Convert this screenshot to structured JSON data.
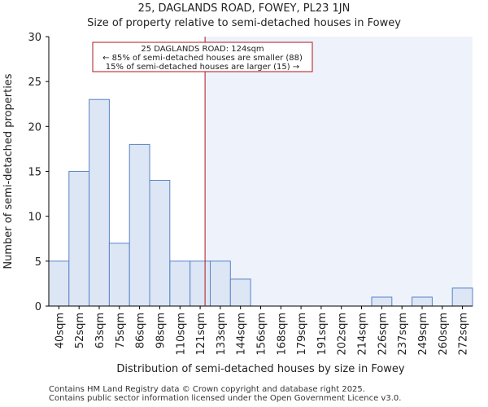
{
  "chart_data": {
    "type": "bar",
    "title": "25, DAGLANDS ROAD, FOWEY, PL23 1JN",
    "subtitle": "Size of property relative to semi-detached houses in Fowey",
    "xlabel": "Distribution of semi-detached houses by size in Fowey",
    "ylabel": "Number of semi-detached properties",
    "categories": [
      "40sqm",
      "52sqm",
      "63sqm",
      "75sqm",
      "86sqm",
      "98sqm",
      "110sqm",
      "121sqm",
      "133sqm",
      "144sqm",
      "156sqm",
      "168sqm",
      "179sqm",
      "191sqm",
      "202sqm",
      "214sqm",
      "226sqm",
      "237sqm",
      "249sqm",
      "260sqm",
      "272sqm"
    ],
    "values": [
      5,
      15,
      23,
      7,
      18,
      14,
      5,
      5,
      5,
      3,
      0,
      0,
      0,
      0,
      0,
      0,
      1,
      0,
      1,
      0,
      2
    ],
    "ylim": [
      0,
      30
    ],
    "yticks": [
      0,
      5,
      10,
      15,
      20,
      25,
      30
    ],
    "marker": {
      "value_sqm": 124,
      "label_line1": "25 DAGLANDS ROAD: 124sqm",
      "label_line2": "← 85% of semi-detached houses are smaller (88)",
      "label_line3": "15% of semi-detached houses are larger (15) →"
    },
    "colors": {
      "bar_fill": "#dce6f4",
      "bar_stroke": "#5a82c8",
      "marker": "#b0151b",
      "highlight_bg": "#eef2fb"
    }
  },
  "footer": {
    "line1": "Contains HM Land Registry data © Crown copyright and database right 2025.",
    "line2": "Contains public sector information licensed under the Open Government Licence v3.0."
  }
}
